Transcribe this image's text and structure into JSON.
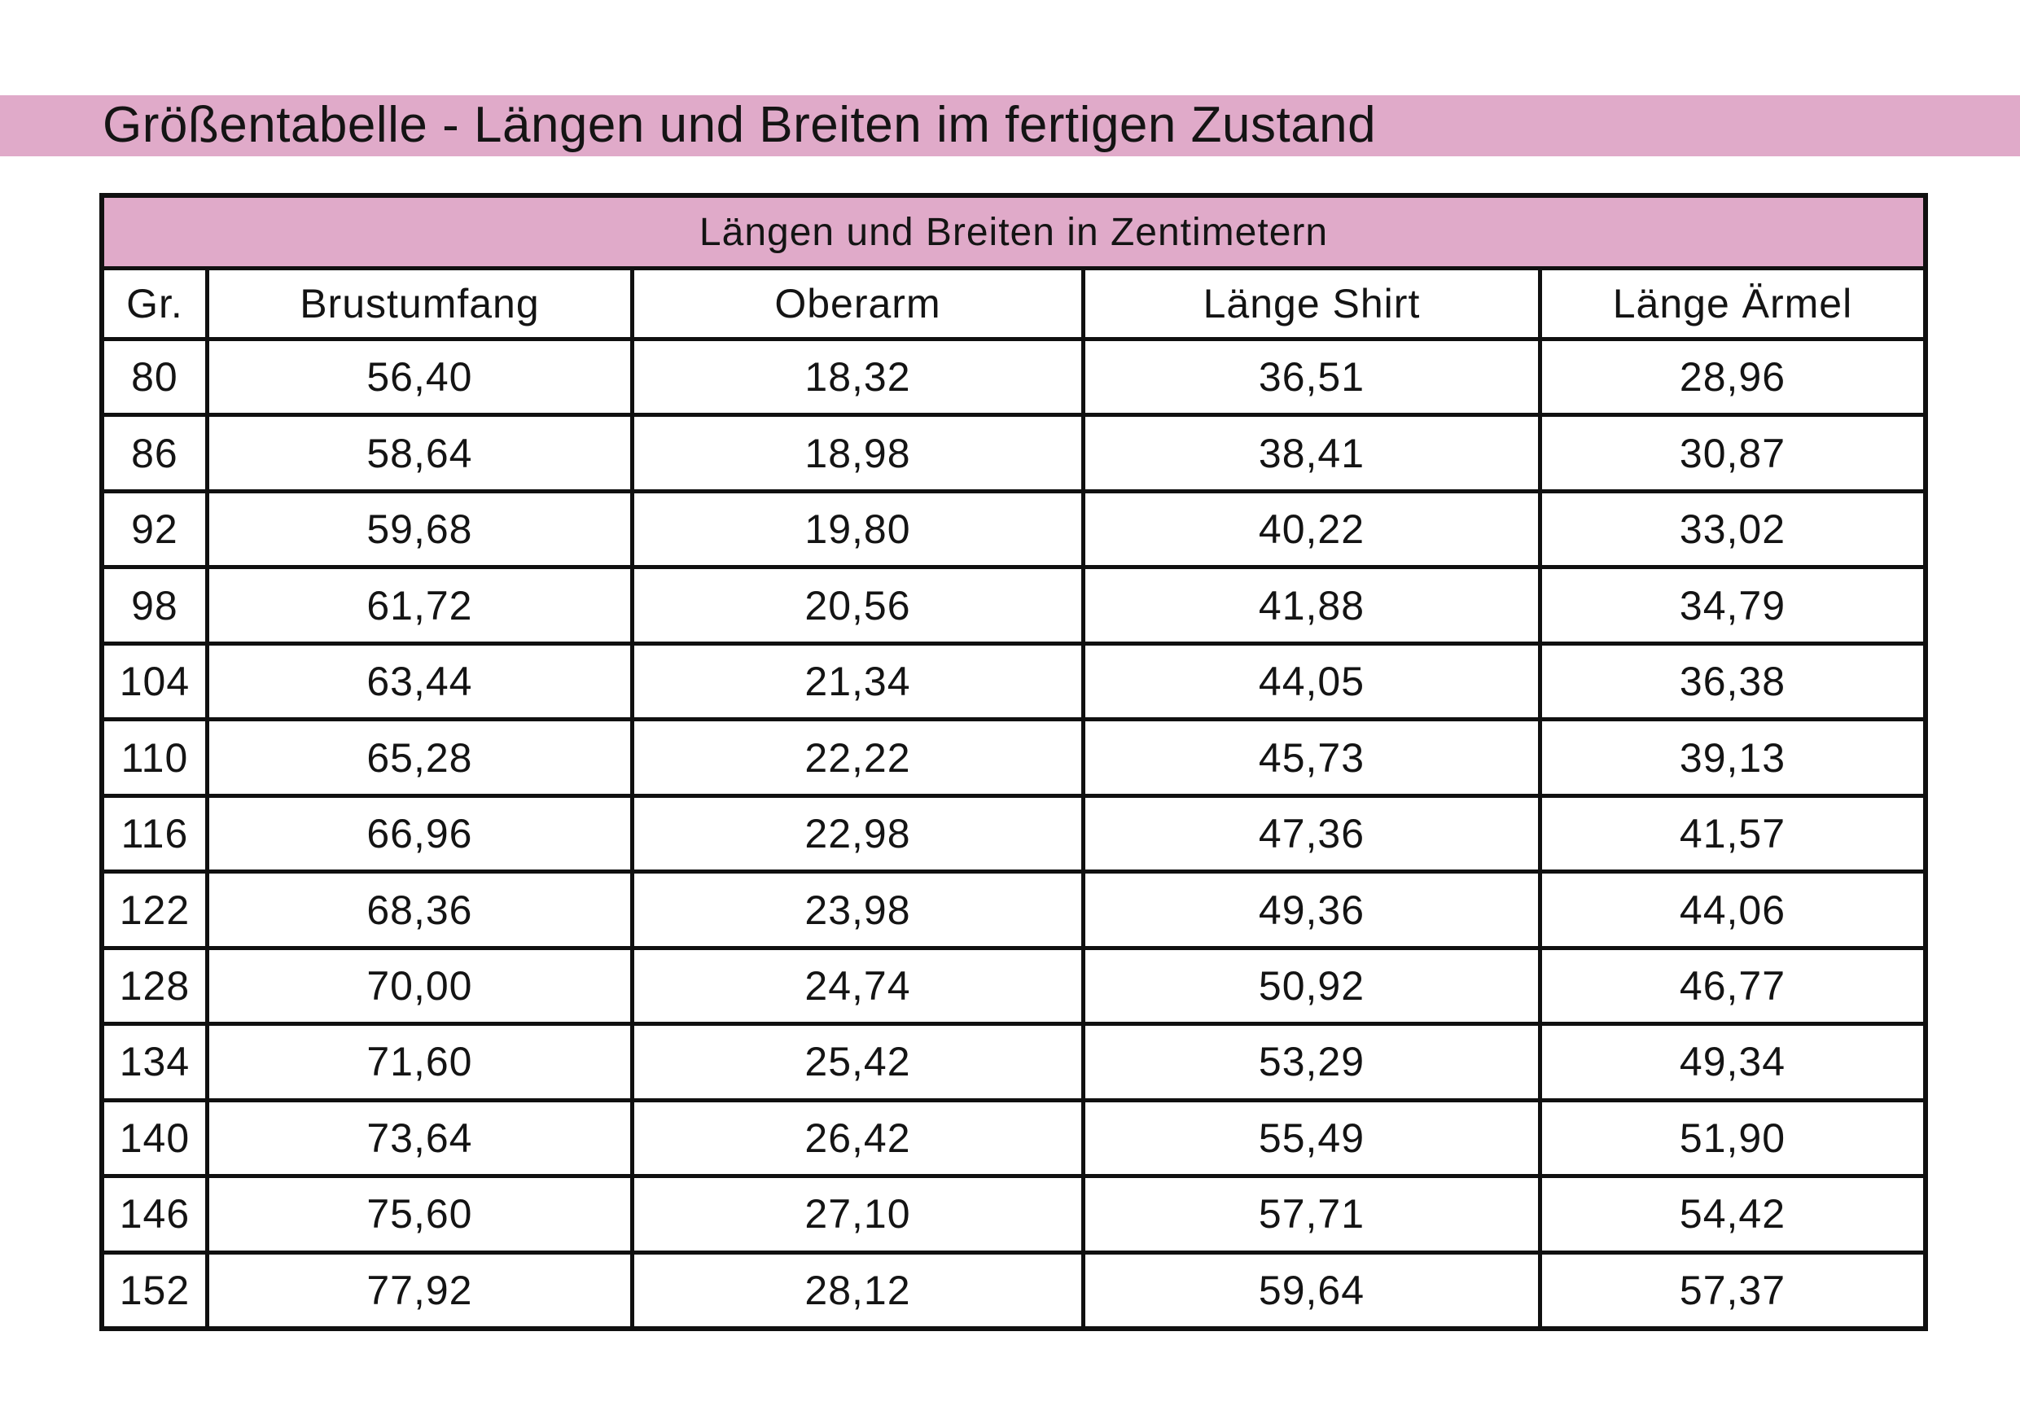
{
  "page": {
    "title": "Größentabelle - Längen und Breiten im fertigen Zustand"
  },
  "table": {
    "header": "Längen und Breiten in Zentimetern",
    "columns": [
      "Gr.",
      "Brustumfang",
      "Oberarm",
      "Länge Shirt",
      "Länge Ärmel"
    ],
    "rows": [
      [
        "80",
        "56,40",
        "18,32",
        "36,51",
        "28,96"
      ],
      [
        "86",
        "58,64",
        "18,98",
        "38,41",
        "30,87"
      ],
      [
        "92",
        "59,68",
        "19,80",
        "40,22",
        "33,02"
      ],
      [
        "98",
        "61,72",
        "20,56",
        "41,88",
        "34,79"
      ],
      [
        "104",
        "63,44",
        "21,34",
        "44,05",
        "36,38"
      ],
      [
        "110",
        "65,28",
        "22,22",
        "45,73",
        "39,13"
      ],
      [
        "116",
        "66,96",
        "22,98",
        "47,36",
        "41,57"
      ],
      [
        "122",
        "68,36",
        "23,98",
        "49,36",
        "44,06"
      ],
      [
        "128",
        "70,00",
        "24,74",
        "50,92",
        "46,77"
      ],
      [
        "134",
        "71,60",
        "25,42",
        "53,29",
        "49,34"
      ],
      [
        "140",
        "73,64",
        "26,42",
        "55,49",
        "51,90"
      ],
      [
        "146",
        "75,60",
        "27,10",
        "57,71",
        "54,42"
      ],
      [
        "152",
        "77,92",
        "28,12",
        "59,64",
        "57,37"
      ]
    ]
  },
  "colors": {
    "accent_pink": "#e0aac9",
    "line": "#101010",
    "text": "#141414"
  }
}
